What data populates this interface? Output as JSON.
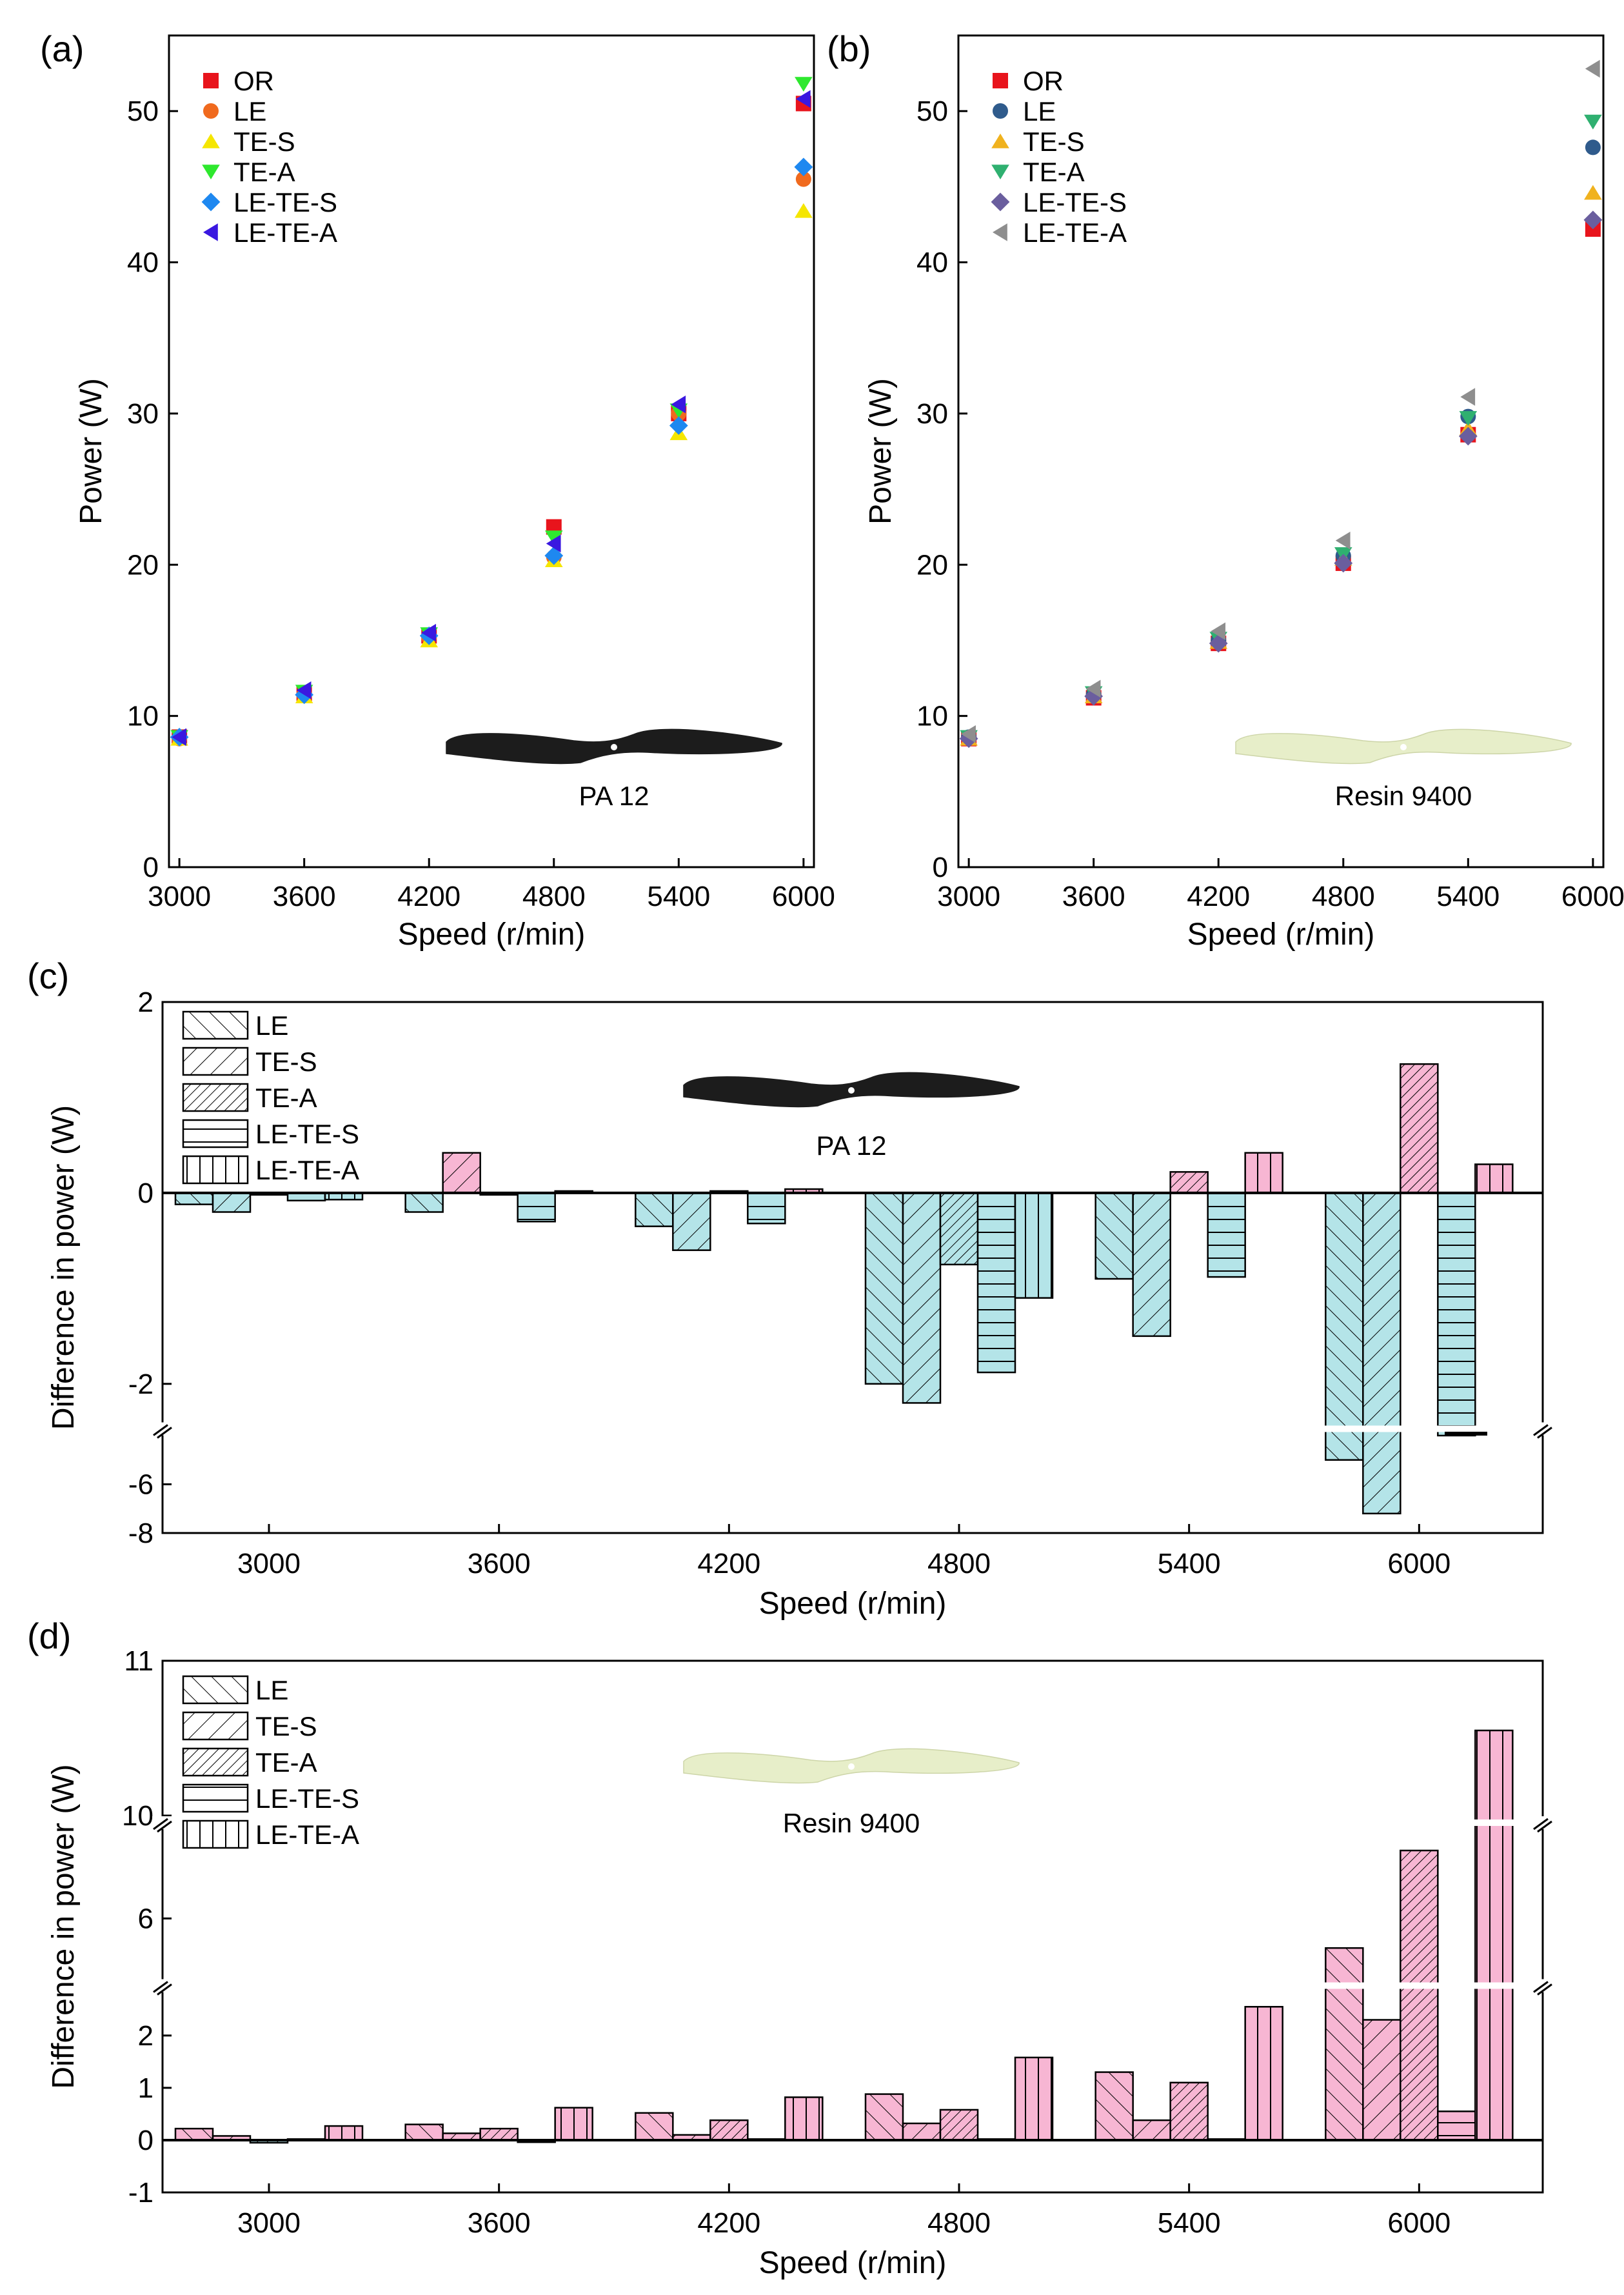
{
  "colors": {
    "OR": "#e8141c",
    "LE_a": "#f06a1e",
    "TE_S_a": "#f5e600",
    "TE_A_a": "#2ee82e",
    "LE_TE_S_a": "#1e88f0",
    "LE_TE_A_a": "#3a18e0",
    "LE_b": "#2f5b8c",
    "TE_S_b": "#f0b21e",
    "TE_A_b": "#2fb070",
    "LE_TE_S_b": "#6a5e9e",
    "LE_TE_A_b": "#8e8e8e",
    "neg_bar": "#b4e4e8",
    "pos_bar": "#f7b6d3",
    "pa12_propeller": "#1c1c1c",
    "resin_propeller": "#e7eec9"
  },
  "chart_data": [
    {
      "panel": "(a)",
      "type": "scatter",
      "xlabel": "Speed (r/min)",
      "ylabel": "Power (W)",
      "x": [
        3000,
        3600,
        4200,
        4800,
        5400,
        6000
      ],
      "xlim": [
        2950,
        6050
      ],
      "ylim": [
        0,
        55
      ],
      "yticks": [
        0,
        10,
        20,
        30,
        40,
        50
      ],
      "annotation": "PA 12",
      "series": [
        {
          "name": "OR",
          "marker": "square",
          "color": "#e8141c",
          "values": [
            8.6,
            11.5,
            15.3,
            22.5,
            30.0,
            50.5
          ]
        },
        {
          "name": "LE",
          "marker": "circle",
          "color": "#f06a1e",
          "values": [
            8.5,
            11.4,
            15.2,
            20.5,
            30.0,
            45.5
          ]
        },
        {
          "name": "TE-S",
          "marker": "triangle-up",
          "color": "#f5e600",
          "values": [
            8.5,
            11.3,
            15.0,
            20.3,
            28.7,
            43.4
          ]
        },
        {
          "name": "TE-A",
          "marker": "triangle-down",
          "color": "#2ee82e",
          "values": [
            8.6,
            11.6,
            15.4,
            21.8,
            30.2,
            51.8
          ]
        },
        {
          "name": "LE-TE-S",
          "marker": "diamond",
          "color": "#1e88f0",
          "values": [
            8.6,
            11.4,
            15.3,
            20.6,
            29.2,
            46.3
          ]
        },
        {
          "name": "LE-TE-A",
          "marker": "triangle-left",
          "color": "#3a18e0",
          "values": [
            8.6,
            11.7,
            15.5,
            21.4,
            30.6,
            50.8
          ]
        }
      ]
    },
    {
      "panel": "(b)",
      "type": "scatter",
      "xlabel": "Speed (r/min)",
      "ylabel": "Power (W)",
      "x": [
        3000,
        3600,
        4200,
        4800,
        5400,
        6000
      ],
      "xlim": [
        2950,
        6050
      ],
      "ylim": [
        0,
        55
      ],
      "yticks": [
        0,
        10,
        20,
        30,
        40,
        50
      ],
      "annotation": "Resin 9400",
      "series": [
        {
          "name": "OR",
          "marker": "square",
          "color": "#e8141c",
          "values": [
            8.5,
            11.2,
            14.8,
            20.1,
            28.6,
            42.2
          ]
        },
        {
          "name": "LE",
          "marker": "circle",
          "color": "#2f5b8c",
          "values": [
            8.6,
            11.4,
            15.0,
            20.6,
            29.8,
            47.6
          ]
        },
        {
          "name": "TE-S",
          "marker": "triangle-up",
          "color": "#f0b21e",
          "values": [
            8.5,
            11.3,
            14.9,
            20.4,
            29.0,
            44.6
          ]
        },
        {
          "name": "TE-A",
          "marker": "triangle-down",
          "color": "#2fb070",
          "values": [
            8.6,
            11.5,
            15.1,
            20.7,
            29.7,
            49.3
          ]
        },
        {
          "name": "LE-TE-S",
          "marker": "diamond",
          "color": "#6a5e9e",
          "values": [
            8.5,
            11.3,
            14.8,
            20.1,
            28.5,
            42.8
          ]
        },
        {
          "name": "LE-TE-A",
          "marker": "triangle-left",
          "color": "#8e8e8e",
          "values": [
            8.8,
            11.8,
            15.6,
            21.6,
            31.1,
            52.8
          ]
        }
      ]
    },
    {
      "panel": "(c)",
      "type": "bar",
      "xlabel": "Speed (r/min)",
      "ylabel": "Difference in power (W)",
      "categories": [
        "3000",
        "3600",
        "4200",
        "4800",
        "5400",
        "6000"
      ],
      "ylim": [
        -8,
        2
      ],
      "broken_axis": "lower segment -8 to -4, upper segment -2.4 to 2",
      "yticks": [
        "2",
        "0",
        "-2",
        "-6",
        "-8"
      ],
      "annotation": "PA 12",
      "series": [
        {
          "name": "LE",
          "hatch": "forward-diagonal",
          "values": [
            -0.12,
            -0.2,
            -0.35,
            -2.0,
            -0.9,
            -5.0
          ]
        },
        {
          "name": "TE-S",
          "hatch": "back-diagonal",
          "values": [
            -0.2,
            0.42,
            -0.6,
            -2.2,
            -1.5,
            -7.2
          ]
        },
        {
          "name": "TE-A",
          "hatch": "dense-back-diagonal",
          "values": [
            -0.02,
            -0.02,
            0.02,
            -0.75,
            0.22,
            1.35
          ]
        },
        {
          "name": "LE-TE-S",
          "hatch": "horizontal",
          "values": [
            -0.08,
            -0.3,
            -0.32,
            -1.88,
            -0.88,
            -4.0
          ]
        },
        {
          "name": "LE-TE-A",
          "hatch": "vertical",
          "values": [
            -0.07,
            0.02,
            0.04,
            -1.1,
            0.42,
            0.3
          ]
        }
      ]
    },
    {
      "panel": "(d)",
      "type": "bar",
      "xlabel": "Speed (r/min)",
      "ylabel": "Difference in power (W)",
      "categories": [
        "3000",
        "3600",
        "4200",
        "4800",
        "5400",
        "6000"
      ],
      "ylim": [
        -1,
        11
      ],
      "broken_axis": "lower segment -1 to 2.8, middle segment 4 to 9, upper segment 10 to 11",
      "yticks": [
        "11",
        "10",
        "6",
        "2",
        "1",
        "0",
        "-1"
      ],
      "annotation": "Resin 9400",
      "series": [
        {
          "name": "LE",
          "hatch": "forward-diagonal",
          "values": [
            0.22,
            0.3,
            0.52,
            0.88,
            1.3,
            5.0
          ]
        },
        {
          "name": "TE-S",
          "hatch": "back-diagonal",
          "values": [
            0.08,
            0.13,
            0.1,
            0.32,
            0.38,
            2.3
          ]
        },
        {
          "name": "TE-A",
          "hatch": "dense-back-diagonal",
          "values": [
            -0.05,
            0.22,
            0.38,
            0.58,
            1.1,
            8.3
          ]
        },
        {
          "name": "LE-TE-S",
          "hatch": "horizontal",
          "values": [
            0.02,
            -0.04,
            0.02,
            0.02,
            0.02,
            0.55
          ]
        },
        {
          "name": "LE-TE-A",
          "hatch": "vertical",
          "values": [
            0.27,
            0.62,
            0.82,
            1.58,
            2.55,
            10.55
          ]
        }
      ]
    }
  ]
}
